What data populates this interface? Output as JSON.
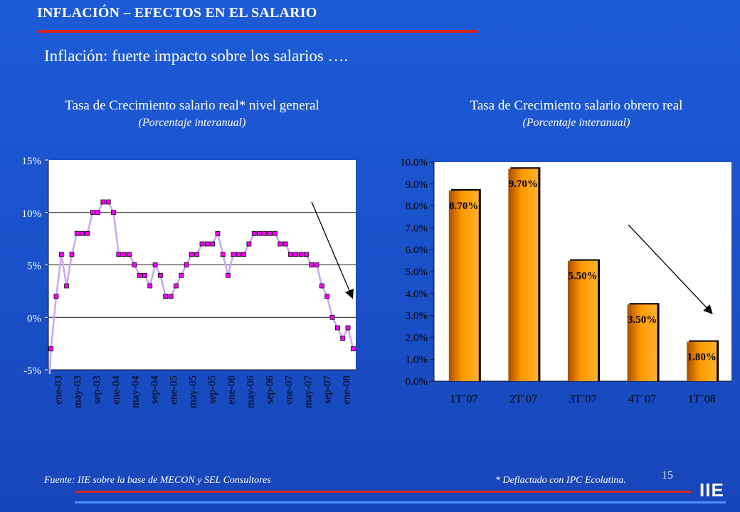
{
  "slide": {
    "title": "INFLACIÓN – EFECTOS EN EL SALARIO",
    "subtitle": "Inflación: fuerte impacto sobre los salarios ….",
    "footer_source": "Fuente: IIE sobre la base de MECON y SEL Consultores",
    "footer_note": "* Deflactado con IPC Ecolatina.",
    "page_number": "15",
    "logo": "IIE"
  },
  "colors": {
    "background": "#1a50c8",
    "accent_red": "#d9241c",
    "line_series": "#c9a8f0",
    "marker": "#ff00ff",
    "bar_orange": "#ff9500",
    "plot_area": "#ffffff"
  },
  "chart_data": [
    {
      "type": "line",
      "title": "Tasa de Crecimiento salario real* nivel general",
      "subtitle": "(Porcentaje interanual)",
      "y_ticks": [
        "15%",
        "10%",
        "5%",
        "0%",
        "-5%"
      ],
      "x_ticks": [
        "ene-03",
        "may-03",
        "sep-03",
        "ene-04",
        "may-04",
        "sep-04",
        "ene-05",
        "may-05",
        "sep-05",
        "ene-06",
        "may-06",
        "sep-06",
        "ene-07",
        "may-07",
        "sep-07",
        "ene-08"
      ],
      "ylim": [
        -5,
        15
      ],
      "grid": "horizontal",
      "trend_arrow": "downward",
      "values": [
        -3,
        2,
        6,
        3,
        6,
        8,
        8,
        8,
        10,
        10,
        11,
        11,
        10,
        6,
        6,
        6,
        5,
        4,
        4,
        3,
        5,
        4,
        2,
        2,
        3,
        4,
        5,
        6,
        6,
        7,
        7,
        7,
        8,
        6,
        4,
        6,
        6,
        6,
        7,
        8,
        8,
        8,
        8,
        8,
        7,
        7,
        6,
        6,
        6,
        6,
        5,
        5,
        3,
        2,
        0,
        -1,
        -2,
        -1,
        -3
      ]
    },
    {
      "type": "bar",
      "title": "Tasa de Crecimiento salario obrero  real",
      "subtitle": "(Porcentaje interanual)",
      "categories": [
        "1T´07",
        "2T´07",
        "3T´07",
        "4T´07",
        "1T´08"
      ],
      "values": [
        8.7,
        9.7,
        5.5,
        3.5,
        1.8
      ],
      "data_labels": [
        "8.70%",
        "9.70%",
        "5.50%",
        "3.50%",
        "1.80%"
      ],
      "y_ticks": [
        "10.0%",
        "9.0%",
        "8.0%",
        "7.0%",
        "6.0%",
        "5.0%",
        "4.0%",
        "3.0%",
        "2.0%",
        "1.0%",
        "0.0%"
      ],
      "ylim": [
        0,
        10
      ],
      "grid": "none",
      "trend_arrow": "downward"
    }
  ]
}
